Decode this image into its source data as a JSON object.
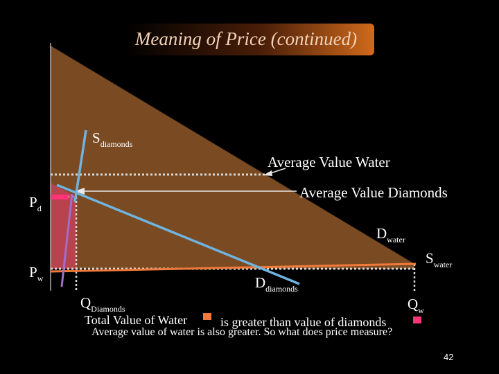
{
  "slide": {
    "title": "Meaning of Price (continued)",
    "page_number": "42"
  },
  "labels": {
    "s_diamonds": {
      "main": "S",
      "sub": "diamonds"
    },
    "avg_value_water": "Average Value Water",
    "avg_value_diamonds": "Average Value Diamonds",
    "p_d": {
      "main": "P",
      "sub": "d"
    },
    "p_w": {
      "main": "P",
      "sub": "w"
    },
    "d_water": {
      "main": "D",
      "sub": "water"
    },
    "s_water": {
      "main": "S",
      "sub": "water"
    },
    "d_diamonds": {
      "main": "D",
      "sub": "diamonds"
    },
    "q_diamonds": {
      "main": "Q",
      "sub": "Diamonds"
    },
    "q_w": {
      "main": "Q",
      "sub": "w"
    }
  },
  "notes": {
    "total_value_water": "Total Value of Water",
    "greater_than": "is greater than value of diamonds",
    "avg_also_greater": "Average value of water is also greater. So what does price measure?"
  },
  "colors": {
    "background": "#000000",
    "water_area": "#7a4a22",
    "diamond_area": "#b8424e",
    "supply_diamonds": "#6fb4e0",
    "demand_diamonds": "#6fb4e0",
    "supply_water": "#f07a3a",
    "price_diamonds_marker": "#ff3377",
    "dotted_lines": "#d8d8d8",
    "legend_swatch_water": "#f07a3a",
    "legend_swatch_diamonds": "#ff3377"
  }
}
